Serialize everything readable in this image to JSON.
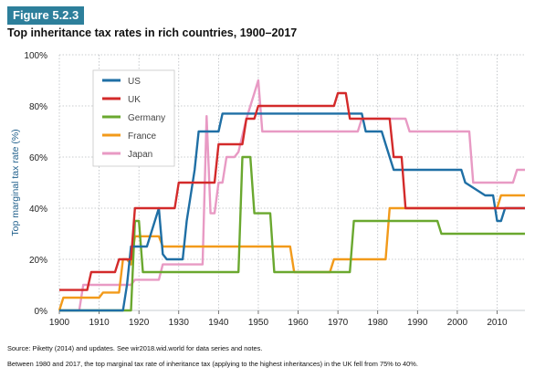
{
  "figure": {
    "tag": "Figure 5.2.3",
    "title": "Top inheritance tax rates in rich countries, 1900–2017",
    "source_note": "Source: Piketty (2014) and updates. See wir2018.wid.world for data series and notes.",
    "caption": "Between 1980 and 2017, the top marginal tax rate of inheritance tax (applying to the highest inheritances) in the UK fell from 75% to 40%."
  },
  "chart_data": {
    "type": "line",
    "ylabel": "Top marginal tax rate (%)",
    "xlim": [
      1900,
      2017
    ],
    "ylim": [
      0,
      100
    ],
    "x_ticks": [
      1900,
      1910,
      1920,
      1930,
      1940,
      1950,
      1960,
      1970,
      1980,
      1990,
      2000,
      2010
    ],
    "y_ticks": [
      "0%",
      "20%",
      "40%",
      "60%",
      "80%",
      "100%"
    ],
    "y_tick_values": [
      0,
      20,
      40,
      60,
      80,
      100
    ],
    "grid": true,
    "legend_position": "top-left",
    "series": [
      {
        "name": "US",
        "color": "#1f6fa5",
        "points": [
          [
            1900,
            0
          ],
          [
            1916,
            0
          ],
          [
            1917,
            10
          ],
          [
            1918,
            25
          ],
          [
            1922,
            25
          ],
          [
            1925,
            40
          ],
          [
            1926,
            22
          ],
          [
            1927,
            20
          ],
          [
            1931,
            20
          ],
          [
            1932,
            35
          ],
          [
            1934,
            55
          ],
          [
            1935,
            70
          ],
          [
            1940,
            70
          ],
          [
            1941,
            77
          ],
          [
            1976,
            77
          ],
          [
            1977,
            70
          ],
          [
            1981,
            70
          ],
          [
            1982,
            65
          ],
          [
            1983,
            60
          ],
          [
            1984,
            55
          ],
          [
            2001,
            55
          ],
          [
            2002,
            50
          ],
          [
            2007,
            45
          ],
          [
            2009,
            45
          ],
          [
            2010,
            35
          ],
          [
            2011,
            35
          ],
          [
            2012,
            40
          ],
          [
            2017,
            40
          ]
        ]
      },
      {
        "name": "UK",
        "color": "#d32a2a",
        "points": [
          [
            1900,
            8
          ],
          [
            1907,
            8
          ],
          [
            1908,
            15
          ],
          [
            1914,
            15
          ],
          [
            1915,
            20
          ],
          [
            1918,
            20
          ],
          [
            1919,
            40
          ],
          [
            1929,
            40
          ],
          [
            1930,
            50
          ],
          [
            1939,
            50
          ],
          [
            1940,
            65
          ],
          [
            1946,
            65
          ],
          [
            1947,
            75
          ],
          [
            1949,
            75
          ],
          [
            1950,
            80
          ],
          [
            1969,
            80
          ],
          [
            1970,
            85
          ],
          [
            1972,
            85
          ],
          [
            1973,
            75
          ],
          [
            1983,
            75
          ],
          [
            1984,
            60
          ],
          [
            1986,
            60
          ],
          [
            1987,
            40
          ],
          [
            2017,
            40
          ]
        ]
      },
      {
        "name": "Germany",
        "color": "#6aa82f",
        "points": [
          [
            1900,
            0
          ],
          [
            1918,
            0
          ],
          [
            1919,
            35
          ],
          [
            1920,
            35
          ],
          [
            1921,
            15
          ],
          [
            1945,
            15
          ],
          [
            1946,
            60
          ],
          [
            1948,
            60
          ],
          [
            1949,
            38
          ],
          [
            1953,
            38
          ],
          [
            1954,
            15
          ],
          [
            1973,
            15
          ],
          [
            1974,
            35
          ],
          [
            1995,
            35
          ],
          [
            1996,
            30
          ],
          [
            2017,
            30
          ]
        ]
      },
      {
        "name": "France",
        "color": "#f29a1a",
        "points": [
          [
            1900,
            0
          ],
          [
            1901,
            5
          ],
          [
            1910,
            5
          ],
          [
            1911,
            7
          ],
          [
            1915,
            7
          ],
          [
            1916,
            20
          ],
          [
            1917,
            20
          ],
          [
            1918,
            18
          ],
          [
            1919,
            29
          ],
          [
            1925,
            29
          ],
          [
            1926,
            25
          ],
          [
            1958,
            25
          ],
          [
            1959,
            15
          ],
          [
            1968,
            15
          ],
          [
            1969,
            20
          ],
          [
            1982,
            20
          ],
          [
            1983,
            40
          ],
          [
            2010,
            40
          ],
          [
            2011,
            45
          ],
          [
            2017,
            45
          ]
        ]
      },
      {
        "name": "Japan",
        "color": "#e89ac4",
        "points": [
          [
            1900,
            0
          ],
          [
            1905,
            0
          ],
          [
            1906,
            10
          ],
          [
            1918,
            10
          ],
          [
            1919,
            12
          ],
          [
            1925,
            12
          ],
          [
            1926,
            18
          ],
          [
            1936,
            18
          ],
          [
            1937,
            76
          ],
          [
            1938,
            38
          ],
          [
            1939,
            38
          ],
          [
            1940,
            50
          ],
          [
            1941,
            50
          ],
          [
            1942,
            60
          ],
          [
            1944,
            60
          ],
          [
            1945,
            62
          ],
          [
            1947,
            75
          ],
          [
            1949,
            85
          ],
          [
            1950,
            90
          ],
          [
            1951,
            70
          ],
          [
            1975,
            70
          ],
          [
            1976,
            75
          ],
          [
            1987,
            75
          ],
          [
            1988,
            70
          ],
          [
            2003,
            70
          ],
          [
            2004,
            50
          ],
          [
            2014,
            50
          ],
          [
            2015,
            55
          ],
          [
            2017,
            55
          ]
        ]
      }
    ]
  }
}
